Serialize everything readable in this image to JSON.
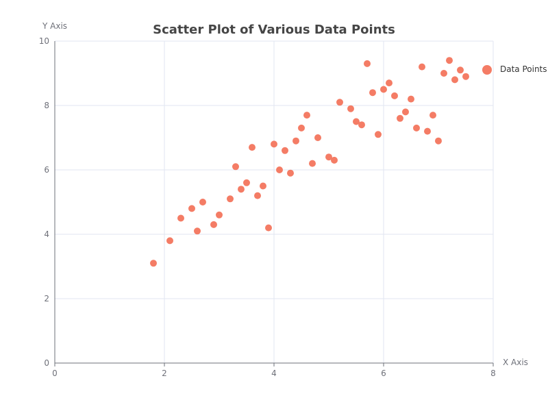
{
  "chart_data": {
    "type": "scatter",
    "title": "Scatter Plot of Various Data Points",
    "xlabel": "X Axis",
    "ylabel": "Y Axis",
    "xlim": [
      0,
      8
    ],
    "ylim": [
      0,
      10
    ],
    "xticks": [
      0,
      2,
      4,
      6,
      8
    ],
    "yticks": [
      0,
      2,
      4,
      6,
      8,
      10
    ],
    "grid": true,
    "legend_position": "right",
    "series": [
      {
        "name": "Data Points",
        "color": "#f47c65",
        "points": [
          [
            1.8,
            3.1
          ],
          [
            2.1,
            3.8
          ],
          [
            2.3,
            4.5
          ],
          [
            2.5,
            4.8
          ],
          [
            2.6,
            4.1
          ],
          [
            2.7,
            5.0
          ],
          [
            2.9,
            4.3
          ],
          [
            3.0,
            4.6
          ],
          [
            3.2,
            5.1
          ],
          [
            3.3,
            6.1
          ],
          [
            3.4,
            5.4
          ],
          [
            3.5,
            5.6
          ],
          [
            3.6,
            6.7
          ],
          [
            3.7,
            5.2
          ],
          [
            3.8,
            5.5
          ],
          [
            3.9,
            4.2
          ],
          [
            4.0,
            6.8
          ],
          [
            4.1,
            6.0
          ],
          [
            4.2,
            6.6
          ],
          [
            4.3,
            5.9
          ],
          [
            4.4,
            6.9
          ],
          [
            4.5,
            7.3
          ],
          [
            4.6,
            7.7
          ],
          [
            4.7,
            6.2
          ],
          [
            4.8,
            7.0
          ],
          [
            5.0,
            6.4
          ],
          [
            5.1,
            6.3
          ],
          [
            5.2,
            8.1
          ],
          [
            5.4,
            7.9
          ],
          [
            5.5,
            7.5
          ],
          [
            5.6,
            7.4
          ],
          [
            5.7,
            9.3
          ],
          [
            5.8,
            8.4
          ],
          [
            5.9,
            7.1
          ],
          [
            6.0,
            8.5
          ],
          [
            6.1,
            8.7
          ],
          [
            6.2,
            8.3
          ],
          [
            6.3,
            7.6
          ],
          [
            6.4,
            7.8
          ],
          [
            6.5,
            8.2
          ],
          [
            6.6,
            7.3
          ],
          [
            6.7,
            9.2
          ],
          [
            6.8,
            7.2
          ],
          [
            6.9,
            7.7
          ],
          [
            7.0,
            6.9
          ],
          [
            7.1,
            9.0
          ],
          [
            7.2,
            9.4
          ],
          [
            7.3,
            8.8
          ],
          [
            7.4,
            9.1
          ],
          [
            7.5,
            8.9
          ]
        ]
      }
    ]
  }
}
